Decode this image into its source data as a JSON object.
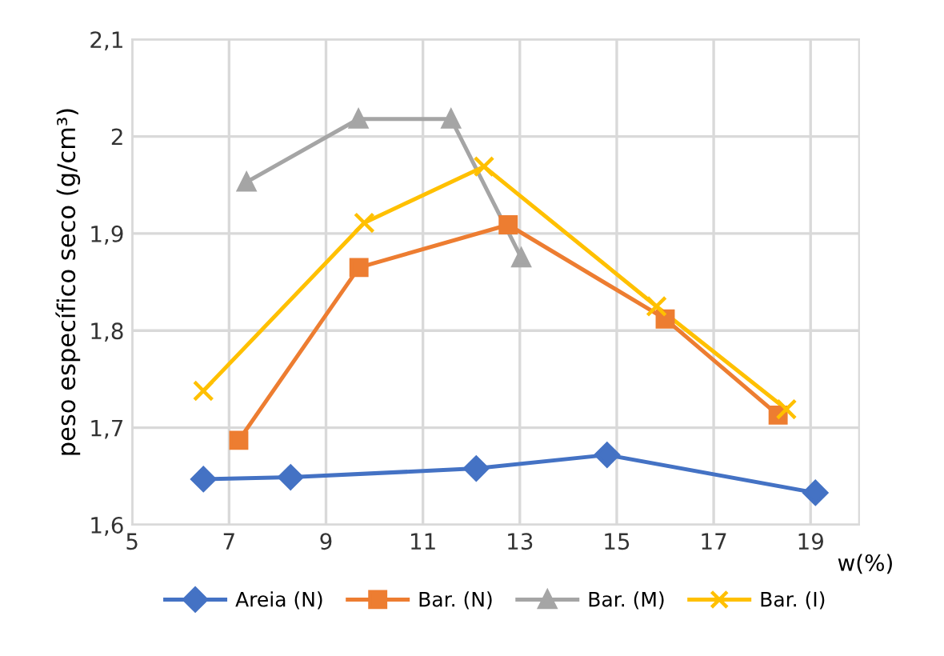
{
  "chart_data": {
    "type": "line",
    "xlabel": "w(%)",
    "ylabel": "peso específico seco (g/cm³)",
    "xlim": [
      5,
      20
    ],
    "xticks": [
      5,
      7,
      9,
      11,
      13,
      15,
      17,
      19
    ],
    "ylim": [
      1.6,
      2.1
    ],
    "yticks": [
      {
        "value": 1.6,
        "label": "1,6"
      },
      {
        "value": 1.7,
        "label": "1,7"
      },
      {
        "value": 1.8,
        "label": "1,8"
      },
      {
        "value": 1.9,
        "label": "1,9"
      },
      {
        "value": 2,
        "label": "2"
      },
      {
        "value": 2.1,
        "label": "2,1"
      }
    ],
    "grid": true,
    "legend": "bottom",
    "line_style": "solid",
    "series": [
      {
        "name": "Areia (N)",
        "color": "#4472c4",
        "marker": "diamond",
        "x": [
          6.47,
          8.27,
          12.1,
          14.8,
          19.1
        ],
        "values": [
          1.647,
          1.649,
          1.658,
          1.672,
          1.633
        ]
      },
      {
        "name": "Bar. (N)",
        "color": "#ed7d31",
        "marker": "square",
        "x": [
          7.2,
          9.68,
          12.76,
          16.0,
          18.33
        ],
        "values": [
          1.687,
          1.865,
          1.909,
          1.812,
          1.713
        ]
      },
      {
        "name": "Bar. (M)",
        "color": "#a5a5a5",
        "marker": "triangle",
        "x": [
          7.36,
          9.67,
          11.58,
          13.03
        ],
        "values": [
          1.953,
          2.018,
          2.018,
          1.875
        ]
      },
      {
        "name": "Bar. (I)",
        "color": "#ffc000",
        "marker": "cross",
        "x": [
          6.47,
          9.79,
          12.26,
          15.82,
          18.5
        ],
        "values": [
          1.738,
          1.911,
          1.969,
          1.825,
          1.719
        ]
      }
    ]
  }
}
